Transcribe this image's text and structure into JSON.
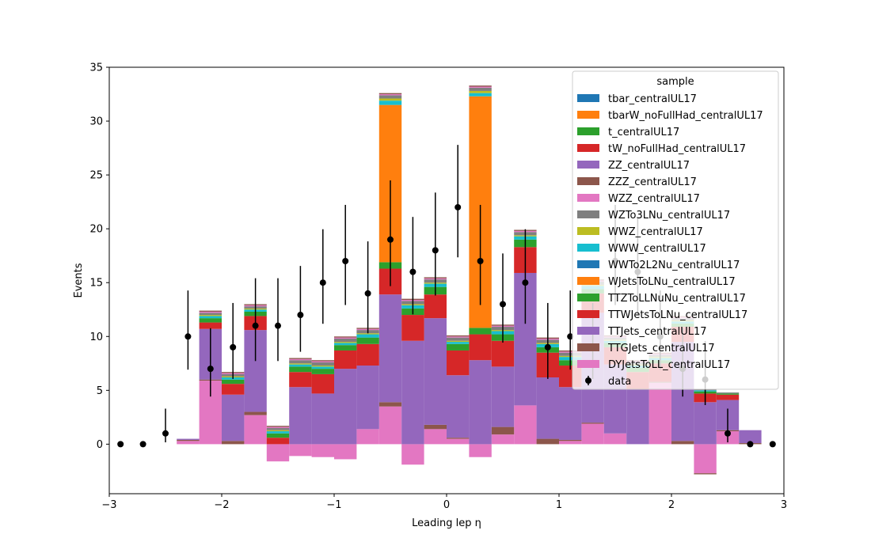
{
  "chart_data": {
    "type": "bar",
    "stacked": true,
    "histogram": true,
    "xlabel": "Leading lep η",
    "ylabel": "Events",
    "xlim": [
      -3,
      3
    ],
    "ylim": [
      -4.6,
      35
    ],
    "xticks": [
      -3,
      -2,
      -1,
      0,
      1,
      2,
      3
    ],
    "xtick_labels": [
      "−3",
      "−2",
      "−1",
      "0",
      "1",
      "2",
      "3"
    ],
    "yticks": [
      0,
      5,
      10,
      15,
      20,
      25,
      30,
      35
    ],
    "ytick_labels": [
      "0",
      "5",
      "10",
      "15",
      "20",
      "25",
      "30",
      "35"
    ],
    "grid": false,
    "legend": {
      "title": "sample",
      "placement": "top-right"
    },
    "bin_edges": [
      -3.0,
      -2.8,
      -2.6,
      -2.4,
      -2.2,
      -2.0,
      -1.8,
      -1.6,
      -1.4,
      -1.2,
      -1.0,
      -0.8,
      -0.6,
      -0.4,
      -0.2,
      0.0,
      0.2,
      0.4,
      0.6,
      0.8,
      1.0,
      1.2,
      1.4,
      1.6,
      1.8,
      2.0,
      2.2,
      2.4,
      2.6,
      2.8,
      3.0
    ],
    "series": [
      {
        "name": "DYJetsToLL_centralUL17",
        "color": "#e377c2",
        "values": [
          0,
          0,
          0,
          0.3,
          5.9,
          0,
          2.7,
          -1.6,
          -1.1,
          -1.2,
          -1.4,
          1.4,
          3.5,
          -1.9,
          1.4,
          0.5,
          -1.2,
          0.9,
          3.6,
          0,
          0.3,
          1.9,
          1.0,
          0,
          5.7,
          0,
          -2.7,
          1.2,
          0,
          0
        ]
      },
      {
        "name": "TTGJets_centralUL17",
        "color": "#8c564b",
        "values": [
          0,
          0,
          0,
          0.1,
          0.1,
          0.3,
          0.3,
          0,
          0,
          0,
          0,
          0,
          0.4,
          0,
          0.4,
          0.1,
          0,
          0.7,
          0,
          0.5,
          0.1,
          0.1,
          0,
          0,
          0.1,
          0.3,
          -0.1,
          0.1,
          0.1,
          0
        ]
      },
      {
        "name": "TTJets_centralUL17",
        "color": "#9467bd",
        "values": [
          0,
          0,
          0,
          0.1,
          4.7,
          4.3,
          7.6,
          0,
          5.3,
          4.7,
          7.0,
          5.9,
          10.0,
          9.6,
          9.9,
          5.8,
          7.8,
          5.6,
          12.3,
          5.7,
          4.9,
          10.2,
          6.4,
          5.1,
          0,
          9.2,
          3.9,
          2.8,
          1.2,
          0
        ]
      },
      {
        "name": "TTWJetsToLNu_centralUL17",
        "color": "#d62728",
        "values": [
          0,
          0,
          0,
          0,
          0.6,
          1.0,
          1.3,
          0.6,
          1.4,
          1.8,
          1.7,
          2.0,
          2.4,
          2.4,
          2.2,
          2.3,
          2.4,
          2.4,
          2.4,
          2.3,
          2.0,
          1.8,
          1.6,
          1.6,
          1.7,
          1.4,
          0.8,
          0.5,
          0,
          0
        ]
      },
      {
        "name": "TTZToLLNuNu_centralUL17",
        "color": "#2ca02c",
        "values": [
          0,
          0,
          0,
          0,
          0.4,
          0.4,
          0.4,
          0.4,
          0.5,
          0.5,
          0.5,
          0.6,
          0.6,
          0.6,
          0.7,
          0.6,
          0.6,
          0.6,
          0.7,
          0.5,
          0.5,
          0.4,
          0.4,
          0.4,
          0.3,
          0.3,
          0.2,
          0.1,
          0,
          0
        ]
      },
      {
        "name": "WJetsToLNu_centralUL17",
        "color": "#ff7f0e",
        "values": [
          0,
          0,
          0,
          0,
          0,
          0,
          0,
          0,
          0,
          0,
          0,
          0,
          14.6,
          0,
          0,
          0,
          21.5,
          0,
          0,
          0,
          0,
          0,
          0,
          0,
          0,
          0,
          0,
          0,
          0,
          0
        ]
      },
      {
        "name": "WWTo2L2Nu_centralUL17",
        "color": "#1f77b4",
        "values": [
          0,
          0,
          0,
          0,
          0,
          0,
          0,
          0,
          0,
          0,
          0,
          0,
          0,
          0,
          0,
          0,
          0,
          0,
          0,
          0,
          0,
          0,
          0,
          0,
          0,
          0,
          0,
          0,
          0,
          0
        ]
      },
      {
        "name": "WWW_centralUL17",
        "color": "#17becf",
        "values": [
          0,
          0,
          0,
          0,
          0.2,
          0.2,
          0.2,
          0.2,
          0.2,
          0.2,
          0.2,
          0.3,
          0.4,
          0.3,
          0.3,
          0.2,
          0.3,
          0.3,
          0.3,
          0.3,
          0.3,
          0.3,
          0.2,
          0.2,
          0.2,
          0.2,
          0.1,
          0,
          0,
          0
        ]
      },
      {
        "name": "WWZ_centralUL17",
        "color": "#bcbd22",
        "values": [
          0,
          0,
          0,
          0,
          0.1,
          0.1,
          0.1,
          0.1,
          0.1,
          0.1,
          0.1,
          0.1,
          0.2,
          0.1,
          0.1,
          0.1,
          0.2,
          0.1,
          0.1,
          0.1,
          0.1,
          0.1,
          0.1,
          0.1,
          0.1,
          0.1,
          0,
          0,
          0,
          0
        ]
      },
      {
        "name": "WZTo3LNu_centralUL17",
        "color": "#7f7f7f",
        "values": [
          0,
          0,
          0,
          0,
          0.2,
          0.2,
          0.2,
          0.2,
          0.3,
          0.3,
          0.3,
          0.3,
          0.3,
          0.3,
          0.3,
          0.3,
          0.3,
          0.3,
          0.3,
          0.3,
          0.3,
          0.3,
          0.2,
          0.2,
          0.2,
          0.2,
          0.1,
          0.1,
          0,
          0
        ]
      },
      {
        "name": "WZZ_centralUL17",
        "color": "#e377c2",
        "values": [
          0,
          0,
          0,
          0,
          0.1,
          0.1,
          0.1,
          0.1,
          0.1,
          0.1,
          0.1,
          0.1,
          0.1,
          0.1,
          0.1,
          0.1,
          0.1,
          0.1,
          0.1,
          0.1,
          0.1,
          0.1,
          0.1,
          0.1,
          0.1,
          0.1,
          0,
          0,
          0,
          0
        ]
      },
      {
        "name": "ZZZ_centralUL17",
        "color": "#8c564b",
        "values": [
          0,
          0,
          0,
          0,
          0.1,
          0.1,
          0.1,
          0.1,
          0.1,
          0.1,
          0.1,
          0.1,
          0.1,
          0.1,
          0.1,
          0.1,
          0.1,
          0.1,
          0.1,
          0.1,
          0.1,
          0.1,
          0.1,
          0.1,
          0.1,
          0.1,
          0,
          0,
          0,
          0
        ]
      },
      {
        "name": "ZZ_centralUL17",
        "color": "#9467bd",
        "values": [
          0,
          0,
          0,
          0,
          0,
          0,
          0,
          0,
          0,
          0,
          0,
          0,
          0,
          0,
          0,
          0,
          0,
          0,
          0,
          0,
          0,
          0,
          0,
          0,
          0,
          0,
          0,
          0,
          0,
          0
        ]
      },
      {
        "name": "tW_noFullHad_centralUL17",
        "color": "#d62728",
        "values": [
          0,
          0,
          0,
          0,
          0,
          0,
          0,
          0,
          0,
          0,
          0,
          0,
          0,
          0,
          0,
          0,
          0,
          0,
          0,
          0,
          0,
          0,
          0,
          0,
          0,
          0,
          0,
          0,
          0,
          0
        ]
      },
      {
        "name": "t_centralUL17",
        "color": "#2ca02c",
        "values": [
          0,
          0,
          0,
          0,
          0,
          0,
          0,
          0,
          0,
          0,
          0,
          0,
          0,
          0,
          0,
          0,
          0,
          0,
          0,
          0,
          0,
          0,
          0,
          0,
          0,
          0,
          0,
          0,
          0,
          0
        ]
      },
      {
        "name": "tbarW_noFullHad_centralUL17",
        "color": "#ff7f0e",
        "values": [
          0,
          0,
          0,
          0,
          0,
          0,
          0,
          0,
          0,
          0,
          0,
          0,
          0,
          0,
          0,
          0,
          0,
          0,
          0,
          0,
          0,
          0,
          0,
          0,
          0,
          0,
          0,
          0,
          0,
          0
        ]
      },
      {
        "name": "tbar_centralUL17",
        "color": "#1f77b4",
        "values": [
          0,
          0,
          0,
          0,
          0,
          0,
          0,
          0,
          0,
          0,
          0,
          0,
          0,
          0,
          0,
          0,
          0,
          0,
          0,
          0,
          0,
          0,
          0,
          0,
          0,
          0,
          0,
          0,
          0,
          0
        ]
      }
    ],
    "data": {
      "name": "data",
      "x": [
        -2.9,
        -2.7,
        -2.5,
        -2.3,
        -2.1,
        -1.9,
        -1.7,
        -1.5,
        -1.3,
        -1.1,
        -0.9,
        -0.7,
        -0.5,
        -0.3,
        -0.1,
        0.1,
        0.3,
        0.5,
        0.7,
        0.9,
        1.1,
        1.3,
        1.5,
        1.7,
        1.9,
        2.1,
        2.3,
        2.5,
        2.7,
        2.9
      ],
      "y": [
        0,
        0,
        1,
        10,
        7,
        9,
        11,
        11,
        12,
        15,
        17,
        14,
        19,
        16,
        18,
        22,
        17,
        13,
        15,
        9,
        10,
        9,
        17,
        16,
        10,
        7,
        6,
        1,
        0,
        0
      ],
      "err_low": [
        0,
        0,
        0.83,
        3.08,
        2.58,
        2.94,
        3.28,
        3.28,
        3.42,
        3.82,
        4.08,
        3.71,
        4.32,
        3.95,
        4.2,
        4.65,
        4.08,
        3.57,
        3.82,
        2.94,
        3.08,
        2.94,
        4.08,
        3.95,
        3.08,
        2.58,
        2.37,
        0.83,
        0,
        0
      ],
      "err_high": [
        0,
        0,
        2.3,
        4.27,
        3.77,
        4.11,
        4.41,
        4.41,
        4.55,
        4.96,
        5.22,
        4.83,
        5.49,
        5.1,
        5.36,
        5.79,
        5.22,
        4.71,
        4.96,
        4.11,
        4.27,
        4.11,
        5.22,
        5.1,
        4.27,
        3.77,
        3.58,
        2.3,
        0,
        0
      ]
    }
  }
}
